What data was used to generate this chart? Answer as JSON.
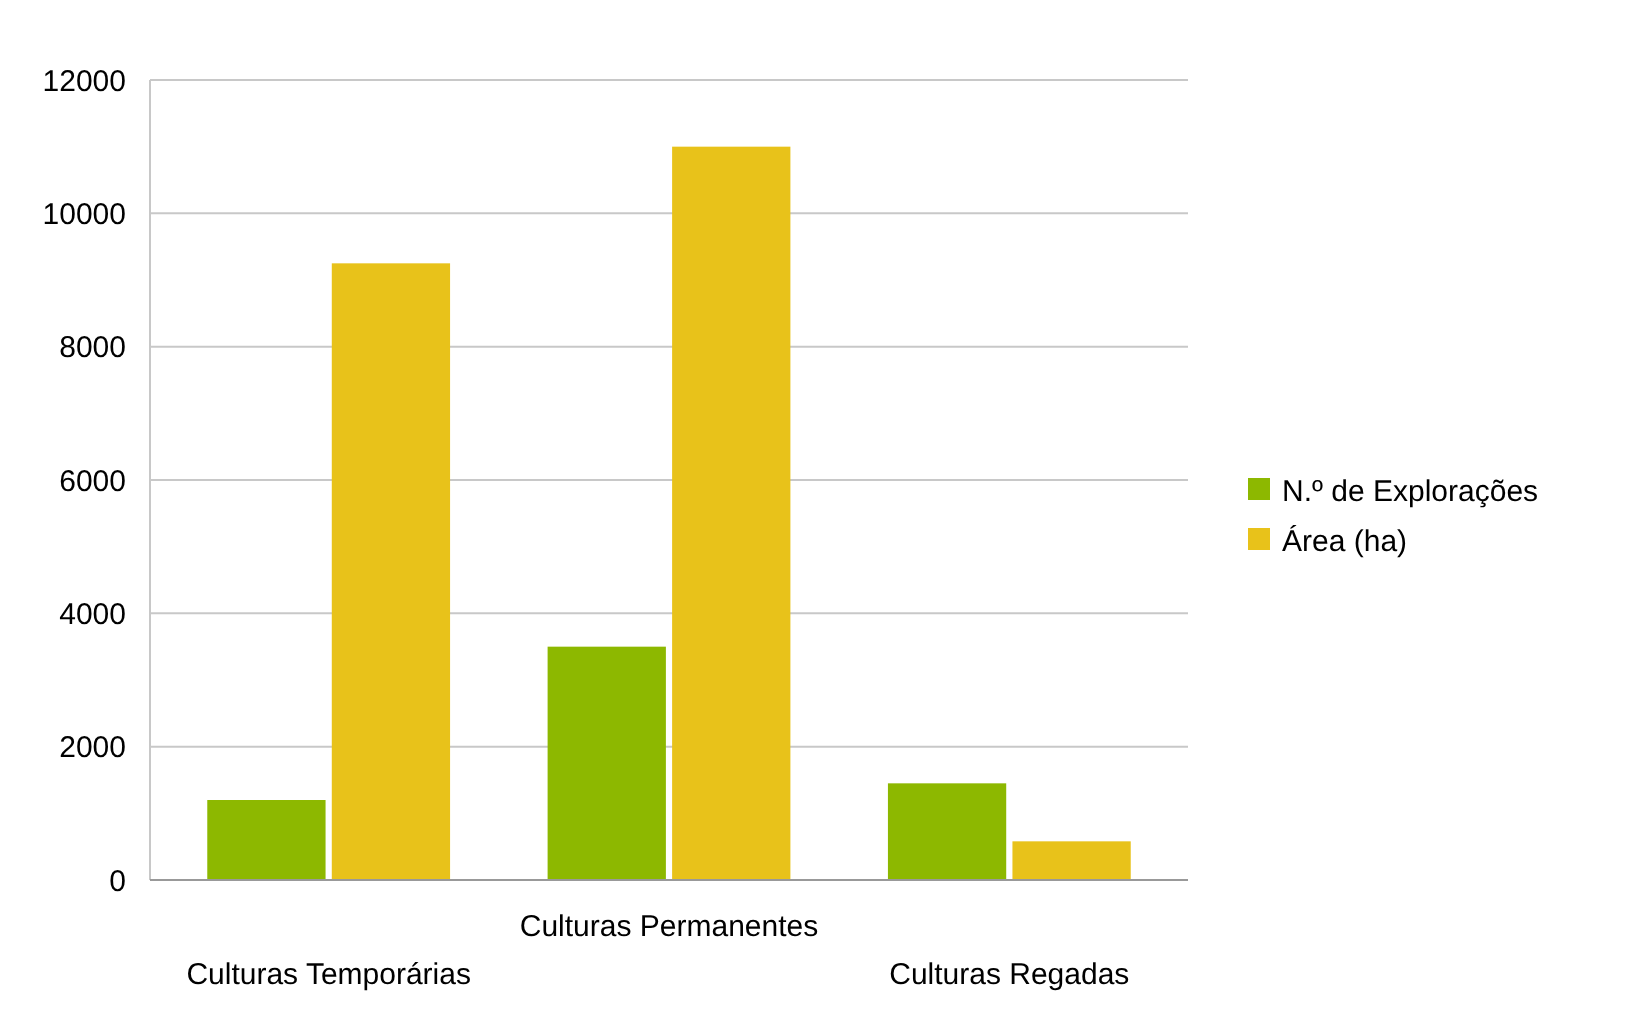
{
  "chart_data": {
    "type": "bar",
    "categories": [
      "Culturas Temporárias",
      "Culturas Permanentes",
      "Culturas Regadas"
    ],
    "series": [
      {
        "name": "N.º de Explorações",
        "color": "#8db800",
        "values": [
          1200,
          3500,
          1450
        ]
      },
      {
        "name": "Área (ha)",
        "color": "#e8c21a",
        "values": [
          9250,
          11000,
          580
        ]
      }
    ],
    "ylim": [
      0,
      12000
    ],
    "yticks": [
      0,
      2000,
      4000,
      6000,
      8000,
      10000,
      12000
    ],
    "grid": "y",
    "legend": "right"
  }
}
